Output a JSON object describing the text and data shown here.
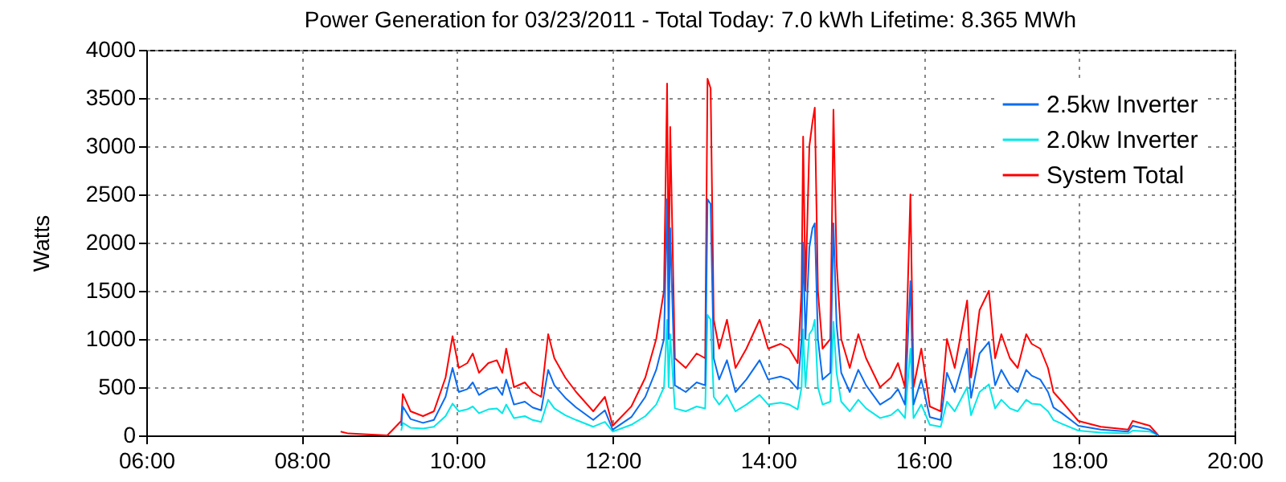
{
  "chart_data": {
    "type": "line",
    "title": "Power Generation for 03/23/2011 - Total Today: 7.0 kWh   Lifetime: 8.365 MWh",
    "ylabel": "Watts",
    "x": [
      8.5,
      8.6,
      9.1,
      9.28,
      9.3,
      9.4,
      9.56,
      9.7,
      9.85,
      9.94,
      10.02,
      10.13,
      10.2,
      10.28,
      10.4,
      10.51,
      10.58,
      10.63,
      10.73,
      10.87,
      10.97,
      11.08,
      11.17,
      11.25,
      11.39,
      11.53,
      11.75,
      11.9,
      12.0,
      12.24,
      12.42,
      12.56,
      12.66,
      12.7,
      12.72,
      12.74,
      12.8,
      12.94,
      13.08,
      13.19,
      13.22,
      13.26,
      13.3,
      13.37,
      13.47,
      13.58,
      13.72,
      13.89,
      14.0,
      14.16,
      14.27,
      14.38,
      14.43,
      14.45,
      14.48,
      14.53,
      14.57,
      14.6,
      14.64,
      14.7,
      14.8,
      14.84,
      14.88,
      14.94,
      15.05,
      15.16,
      15.26,
      15.44,
      15.58,
      15.67,
      15.76,
      15.83,
      15.87,
      15.97,
      16.08,
      16.22,
      16.3,
      16.4,
      16.56,
      16.61,
      16.72,
      16.84,
      16.92,
      17.0,
      17.11,
      17.21,
      17.32,
      17.39,
      17.5,
      17.6,
      17.67,
      17.78,
      17.99,
      18.28,
      18.63,
      18.69,
      18.91,
      19.02
    ],
    "series": [
      {
        "name": "2.5kw Inverter",
        "color": "#0a6cf0",
        "values": [
          null,
          null,
          null,
          100,
          300,
          170,
          130,
          160,
          400,
          700,
          450,
          480,
          550,
          420,
          480,
          500,
          420,
          580,
          320,
          350,
          290,
          260,
          680,
          520,
          390,
          290,
          160,
          260,
          60,
          190,
          400,
          680,
          1000,
          2450,
          1000,
          2150,
          520,
          450,
          550,
          520,
          2450,
          2400,
          800,
          580,
          780,
          450,
          580,
          780,
          580,
          610,
          580,
          480,
          1000,
          2000,
          1000,
          1950,
          2150,
          2200,
          1000,
          580,
          650,
          2200,
          1150,
          650,
          450,
          680,
          520,
          320,
          390,
          480,
          320,
          1600,
          320,
          580,
          190,
          160,
          650,
          450,
          900,
          390,
          850,
          970,
          520,
          680,
          520,
          450,
          680,
          620,
          580,
          450,
          290,
          230,
          100,
          60,
          40,
          100,
          60,
          0
        ]
      },
      {
        "name": "2.0kw Inverter",
        "color": "#00e8e8",
        "values": [
          null,
          null,
          null,
          50,
          130,
          80,
          70,
          90,
          200,
          330,
          250,
          270,
          300,
          230,
          270,
          280,
          230,
          320,
          180,
          200,
          160,
          140,
          370,
          280,
          210,
          160,
          90,
          140,
          40,
          110,
          200,
          320,
          500,
          1200,
          500,
          1050,
          280,
          250,
          300,
          280,
          1250,
          1200,
          400,
          320,
          420,
          250,
          320,
          420,
          320,
          340,
          320,
          270,
          500,
          1100,
          500,
          1050,
          1100,
          1200,
          500,
          320,
          350,
          1180,
          650,
          350,
          250,
          370,
          280,
          180,
          210,
          270,
          180,
          900,
          180,
          320,
          110,
          90,
          350,
          250,
          500,
          210,
          450,
          530,
          280,
          370,
          280,
          250,
          370,
          330,
          320,
          250,
          160,
          120,
          50,
          30,
          20,
          50,
          40,
          0
        ]
      },
      {
        "name": "System Total",
        "color": "#ff0000",
        "values": [
          40,
          20,
          0,
          150,
          430,
          250,
          200,
          250,
          600,
          1030,
          700,
          750,
          850,
          650,
          750,
          780,
          650,
          900,
          500,
          550,
          450,
          400,
          1050,
          800,
          600,
          450,
          250,
          400,
          100,
          300,
          600,
          1000,
          1500,
          3650,
          1500,
          3200,
          800,
          700,
          850,
          800,
          3700,
          3600,
          1200,
          900,
          1200,
          700,
          900,
          1200,
          900,
          950,
          900,
          750,
          1500,
          3100,
          1500,
          3000,
          3250,
          3400,
          1500,
          900,
          1000,
          3380,
          1800,
          1000,
          700,
          1050,
          800,
          500,
          600,
          750,
          500,
          2500,
          500,
          900,
          300,
          250,
          1000,
          700,
          1400,
          600,
          1300,
          1500,
          800,
          1050,
          800,
          700,
          1050,
          950,
          900,
          700,
          450,
          350,
          150,
          90,
          60,
          150,
          100,
          0
        ]
      }
    ],
    "xlim": [
      6,
      20
    ],
    "xticks": [
      {
        "value": 6,
        "label": "06:00"
      },
      {
        "value": 8,
        "label": "08:00"
      },
      {
        "value": 10,
        "label": "10:00"
      },
      {
        "value": 12,
        "label": "12:00"
      },
      {
        "value": 14,
        "label": "14:00"
      },
      {
        "value": 16,
        "label": "16:00"
      },
      {
        "value": 18,
        "label": "18:00"
      },
      {
        "value": 20,
        "label": "20:00"
      }
    ],
    "ylim": [
      0,
      4000
    ],
    "yticks": [
      0,
      500,
      1000,
      1500,
      2000,
      2500,
      3000,
      3500,
      4000
    ],
    "grid": true,
    "legend": "top right"
  }
}
